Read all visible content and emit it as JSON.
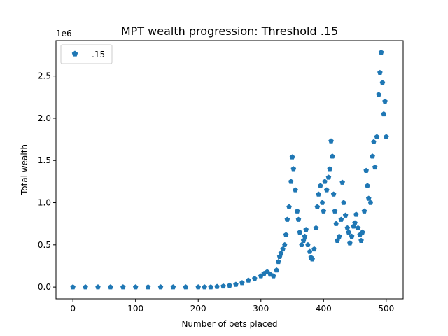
{
  "chart_data": {
    "type": "scatter",
    "title": "MPT wealth progression: Threshold .15",
    "xlabel": "Number of bets placed",
    "ylabel": "Total wealth",
    "y_offset_label": "1e6",
    "xlim": [
      -27,
      527
    ],
    "ylim": [
      -0.14,
      2.92
    ],
    "xticks": [
      0,
      100,
      200,
      300,
      400,
      500
    ],
    "yticks": [
      0.0,
      0.5,
      1.0,
      1.5,
      2.0,
      2.5
    ],
    "xtick_labels": [
      "0",
      "100",
      "200",
      "300",
      "400",
      "500"
    ],
    "ytick_labels": [
      "0.0",
      "0.5",
      "1.0",
      "1.5",
      "2.0",
      "2.5"
    ],
    "y_unit": "millions",
    "marker": "pentagon",
    "color": "#1f77b4",
    "grid": false,
    "legend": "top-left",
    "series": [
      {
        "name": ".15",
        "x": [
          0,
          20,
          40,
          60,
          80,
          100,
          120,
          140,
          160,
          180,
          200,
          210,
          220,
          230,
          240,
          250,
          260,
          270,
          280,
          290,
          300,
          305,
          310,
          315,
          320,
          325,
          328,
          330,
          332,
          335,
          338,
          340,
          342,
          345,
          348,
          350,
          352,
          355,
          358,
          360,
          362,
          365,
          368,
          370,
          372,
          375,
          378,
          380,
          382,
          385,
          388,
          390,
          392,
          395,
          398,
          400,
          402,
          405,
          408,
          410,
          412,
          414,
          416,
          418,
          420,
          422,
          425,
          428,
          430,
          432,
          435,
          438,
          440,
          442,
          445,
          448,
          450,
          452,
          455,
          458,
          460,
          462,
          465,
          468,
          470,
          472,
          475,
          478,
          480,
          482,
          485,
          488,
          490,
          492,
          494,
          496,
          498,
          500
        ],
        "y": [
          0.0,
          0.0,
          0.0,
          0.0,
          0.0,
          0.0,
          0.0,
          0.0,
          0.0,
          0.0,
          0.0,
          0.0,
          0.0,
          0.005,
          0.01,
          0.02,
          0.03,
          0.05,
          0.08,
          0.1,
          0.13,
          0.16,
          0.18,
          0.15,
          0.13,
          0.2,
          0.3,
          0.36,
          0.4,
          0.45,
          0.5,
          0.62,
          0.8,
          0.95,
          1.25,
          1.54,
          1.4,
          1.15,
          0.9,
          0.8,
          0.65,
          0.5,
          0.55,
          0.6,
          0.68,
          0.5,
          0.42,
          0.35,
          0.33,
          0.45,
          0.7,
          0.95,
          1.1,
          1.2,
          1.0,
          0.9,
          1.25,
          1.15,
          1.3,
          1.4,
          1.73,
          1.55,
          1.1,
          0.9,
          0.75,
          0.55,
          0.6,
          0.8,
          1.24,
          1.0,
          0.85,
          0.7,
          0.65,
          0.52,
          0.6,
          0.72,
          0.76,
          0.86,
          0.7,
          0.62,
          0.55,
          0.65,
          0.9,
          1.38,
          1.2,
          1.05,
          1.0,
          1.55,
          1.72,
          1.42,
          1.78,
          2.28,
          2.54,
          2.78,
          2.42,
          2.05,
          2.2,
          1.78
        ]
      }
    ]
  }
}
